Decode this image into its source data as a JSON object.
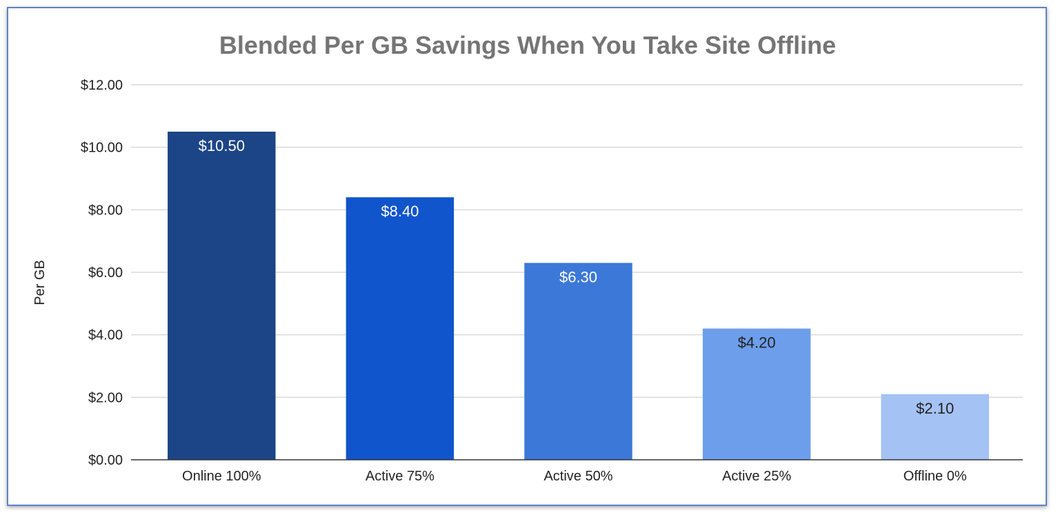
{
  "chart_data": {
    "type": "bar",
    "title": "Blended Per GB Savings When You Take Site Offline",
    "xlabel": "",
    "ylabel": "Per GB",
    "categories": [
      "Online 100%",
      "Active 75%",
      "Active 50%",
      "Active 25%",
      "Offline 0%"
    ],
    "values": [
      10.5,
      8.4,
      6.3,
      4.2,
      2.1
    ],
    "data_labels": [
      "$10.50",
      "$8.40",
      "$6.30",
      "$4.20",
      "$2.10"
    ],
    "ylim": [
      0,
      12
    ],
    "yticks": [
      0,
      2,
      4,
      6,
      8,
      10,
      12
    ],
    "ytick_labels": [
      "$0.00",
      "$2.00",
      "$4.00",
      "$6.00",
      "$8.00",
      "$10.00",
      "$12.00"
    ],
    "grid": true,
    "legend": "none",
    "bar_colors": [
      "#1c4587",
      "#1155cc",
      "#3c78d8",
      "#6d9eeb",
      "#a4c2f4"
    ],
    "label_colors": [
      "#ffffff",
      "#ffffff",
      "#ffffff",
      "#222222",
      "#222222"
    ]
  }
}
